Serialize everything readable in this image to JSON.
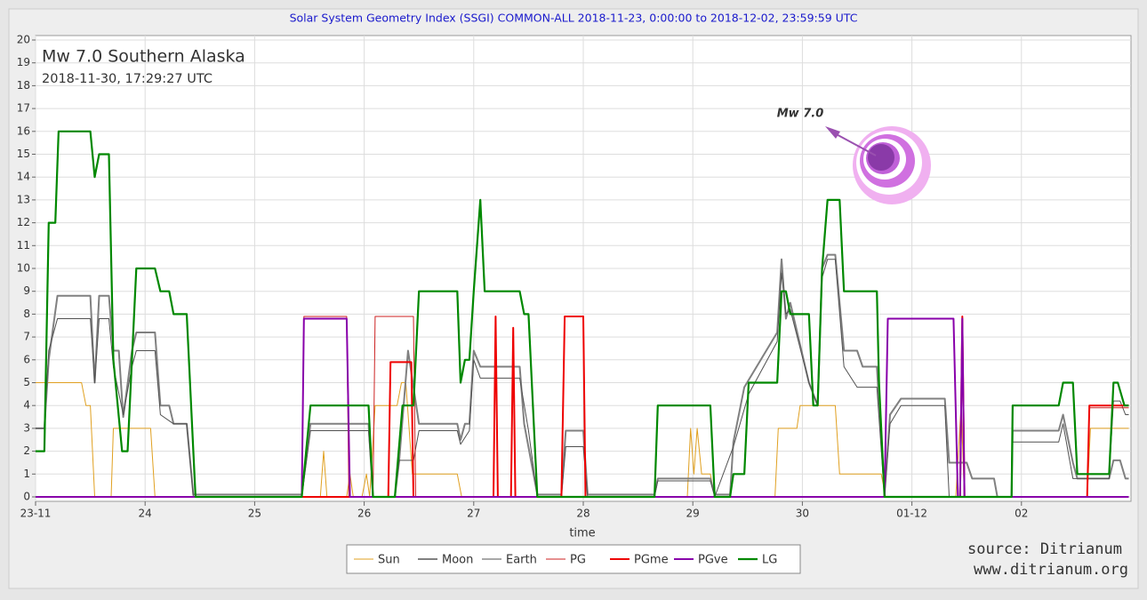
{
  "chart_data": {
    "type": "line",
    "title": "Solar System Geometry Index (SSGI) COMMON-ALL 2018-11-23,  0:00:00 to 2018-12-02, 23:59:59 UTC",
    "event_title": "Mw 7.0 Southern Alaska",
    "event_time": "2018-11-30, 17:29:27 UTC",
    "marker_label": "Mw 7.0",
    "x_label": "time",
    "source": [
      "source: Ditrianum",
      "www.ditrianum.org"
    ],
    "grid": true,
    "xlim": [
      0,
      10
    ],
    "xticks": [
      {
        "value": 0,
        "label": "23-11"
      },
      {
        "value": 1,
        "label": "24"
      },
      {
        "value": 2,
        "label": "25"
      },
      {
        "value": 3,
        "label": "26"
      },
      {
        "value": 4,
        "label": "27"
      },
      {
        "value": 5,
        "label": "28"
      },
      {
        "value": 6,
        "label": "29"
      },
      {
        "value": 7,
        "label": "30"
      },
      {
        "value": 8,
        "label": "01-12"
      },
      {
        "value": 9,
        "label": "02"
      }
    ],
    "ylim": [
      0,
      20
    ],
    "yticks": [
      0,
      1,
      2,
      3,
      4,
      5,
      6,
      7,
      8,
      9,
      10,
      11,
      12,
      13,
      14,
      15,
      16,
      17,
      18,
      19,
      20
    ],
    "series": [
      {
        "name": "Sun",
        "color": "#e0a020",
        "x": [
          0,
          0.42,
          0.46,
          0.5,
          0.54,
          0.69,
          0.71,
          1.05,
          1.09,
          2.6,
          2.63,
          2.66,
          2.84,
          2.87,
          2.9,
          2.98,
          3.02,
          3.05,
          3.1,
          3.3,
          3.34,
          3.38,
          3.44,
          3.85,
          3.89,
          5.95,
          5.98,
          6.01,
          6.04,
          6.08,
          6.16,
          6.2,
          6.75,
          6.78,
          6.95,
          6.98,
          7.3,
          7.34,
          7.72,
          7.76,
          8.4,
          8.45,
          8.48,
          9.6,
          9.63,
          9.98
        ],
        "values": [
          5,
          5,
          4,
          4,
          0,
          0,
          3,
          3,
          0,
          0,
          2,
          0,
          0,
          1,
          0,
          0,
          1,
          0,
          4,
          4,
          5,
          5,
          1,
          1,
          0,
          0,
          3,
          1,
          3,
          1,
          1,
          0,
          0,
          3,
          3,
          4,
          4,
          1,
          1,
          0,
          0,
          4,
          0,
          0,
          3,
          3
        ]
      },
      {
        "name": "Moon",
        "color": "#808080",
        "x": [
          0,
          0.08,
          0.12,
          0.2,
          0.5,
          0.54,
          0.58,
          0.67,
          0.71,
          0.76,
          0.8,
          0.88,
          0.92,
          1.09,
          1.14,
          1.22,
          1.26,
          1.38,
          1.44,
          2.43,
          2.51,
          3.04,
          3.08,
          3.28,
          3.32,
          3.4,
          3.5,
          3.85,
          3.88,
          3.92,
          3.96,
          4.0,
          4.06,
          4.42,
          4.46,
          4.58,
          4.8,
          4.84,
          5.0,
          5.04,
          5.65,
          5.68,
          6.16,
          6.2,
          6.34,
          6.37,
          6.47,
          6.77,
          6.81,
          6.85,
          6.89,
          7.06,
          7.14,
          7.18,
          7.23,
          7.3,
          7.38,
          7.5,
          7.55,
          7.68,
          7.75,
          7.8,
          7.9,
          8.3,
          8.34,
          8.5,
          8.55,
          8.75,
          8.78,
          8.91,
          8.92,
          9.34,
          9.38,
          9.47,
          9.51,
          9.8,
          9.84,
          9.9,
          9.95,
          9.98
        ],
        "values": [
          3,
          3,
          6,
          8.8,
          8.8,
          5,
          8.8,
          8.8,
          6.4,
          6.4,
          3.5,
          6.4,
          7.2,
          7.2,
          4,
          4,
          3.2,
          3.2,
          0.1,
          0.1,
          3.2,
          3.2,
          0,
          0,
          1.6,
          6.4,
          3.2,
          3.2,
          2.5,
          3.2,
          3.2,
          6.4,
          5.7,
          5.7,
          3.2,
          0.1,
          0.1,
          2.9,
          2.9,
          0.1,
          0.1,
          0.8,
          0.8,
          0.1,
          0.1,
          2.4,
          4.8,
          7.2,
          10.4,
          7.8,
          8.5,
          5,
          4,
          10,
          10.6,
          10.6,
          6.4,
          6.4,
          5.7,
          5.7,
          0.1,
          3.6,
          4.3,
          4.3,
          1.5,
          1.5,
          0.8,
          0.8,
          0,
          0,
          2.9,
          2.9,
          3.6,
          1.5,
          0.8,
          0.8,
          1.6,
          1.6,
          0.8,
          0.8
        ]
      },
      {
        "name": "Earth",
        "color": "#505050",
        "x": [
          0,
          0.08,
          0.12,
          0.2,
          0.5,
          0.54,
          0.58,
          0.67,
          0.71,
          0.8,
          0.88,
          0.92,
          1.09,
          1.14,
          1.26,
          1.38,
          1.44,
          2.43,
          2.51,
          3.04,
          3.08,
          3.28,
          3.32,
          3.45,
          3.5,
          3.85,
          3.88,
          3.96,
          4.0,
          4.06,
          4.42,
          4.5,
          4.58,
          4.8,
          4.84,
          5.0,
          5.04,
          5.65,
          5.68,
          6.16,
          6.2,
          6.37,
          6.51,
          6.77,
          6.81,
          6.85,
          6.89,
          7.06,
          7.14,
          7.18,
          7.23,
          7.3,
          7.38,
          7.5,
          7.68,
          7.75,
          7.8,
          7.9,
          8.3,
          8.34,
          8.91,
          8.92,
          9.34,
          9.38,
          9.47,
          9.8,
          9.84,
          9.9,
          9.95,
          9.98
        ],
        "values": [
          3,
          3,
          6.4,
          7.8,
          7.8,
          5,
          7.8,
          7.8,
          5.7,
          3.6,
          5.7,
          6.4,
          6.4,
          3.6,
          3.2,
          3.2,
          0,
          0,
          2.9,
          2.9,
          0,
          0,
          1.6,
          1.6,
          2.9,
          2.9,
          2.3,
          2.9,
          6,
          5.2,
          5.2,
          2.9,
          0,
          0,
          2.2,
          2.2,
          0,
          0,
          0.7,
          0.7,
          0,
          2.2,
          4.5,
          6.8,
          9.8,
          8,
          8.2,
          5,
          4,
          9.6,
          10.4,
          10.4,
          5.7,
          4.8,
          4.8,
          0,
          3.2,
          4,
          4,
          0,
          0,
          2.4,
          2.4,
          3.2,
          0.8,
          0.8,
          4.2,
          4.2,
          3.6,
          3.6
        ]
      },
      {
        "name": "PG",
        "color": "#cc2222",
        "x": [
          0,
          2.43,
          2.45,
          2.84,
          2.86,
          3.08,
          3.1,
          3.45,
          3.47,
          4.18,
          4.2,
          4.22,
          9.6,
          9.62,
          9.98
        ],
        "values": [
          0,
          0,
          7.9,
          7.9,
          0,
          0,
          7.9,
          7.9,
          0,
          0,
          7.9,
          0,
          0,
          3.9,
          3.9
        ]
      },
      {
        "name": "PGme",
        "color": "#ee0000",
        "x": [
          0,
          3.22,
          3.24,
          3.43,
          3.45,
          4.18,
          4.2,
          4.22,
          4.34,
          4.36,
          4.38,
          4.8,
          4.83,
          5.0,
          5.02,
          8.44,
          8.46,
          8.48,
          9.6,
          9.62,
          9.98
        ],
        "values": [
          0,
          0,
          5.9,
          5.9,
          0,
          0,
          7.9,
          0,
          0,
          7.4,
          0,
          0,
          7.9,
          7.9,
          0,
          0,
          7.9,
          0,
          0,
          4,
          4
        ]
      },
      {
        "name": "PGve",
        "color": "#8800aa",
        "x": [
          0,
          2.43,
          2.45,
          2.84,
          2.87,
          7.75,
          7.78,
          8.38,
          8.42,
          8.44,
          8.46,
          8.48,
          9.98
        ],
        "values": [
          0,
          0,
          7.8,
          7.8,
          0,
          0,
          7.8,
          7.8,
          0,
          0,
          7.8,
          0,
          0
        ]
      },
      {
        "name": "LG",
        "color": "#008800",
        "x": [
          0,
          0.08,
          0.12,
          0.18,
          0.21,
          0.5,
          0.54,
          0.58,
          0.67,
          0.71,
          0.79,
          0.84,
          0.88,
          0.92,
          1.09,
          1.14,
          1.22,
          1.26,
          1.38,
          1.46,
          2.43,
          2.51,
          3.04,
          3.08,
          3.28,
          3.35,
          3.45,
          3.5,
          3.85,
          3.88,
          3.92,
          3.96,
          4.0,
          4.06,
          4.1,
          4.42,
          4.46,
          4.5,
          4.58,
          5.65,
          5.68,
          6.16,
          6.2,
          6.34,
          6.37,
          6.47,
          6.51,
          6.77,
          6.81,
          6.85,
          6.89,
          7.06,
          7.1,
          7.14,
          7.18,
          7.23,
          7.34,
          7.38,
          7.68,
          7.7,
          7.75,
          8.91,
          8.92,
          9.34,
          9.38,
          9.47,
          9.51,
          9.8,
          9.84,
          9.88,
          9.94,
          9.98
        ],
        "values": [
          2,
          2,
          12,
          12,
          16,
          16,
          14,
          15,
          15,
          6,
          2,
          2,
          6,
          10,
          10,
          9,
          9,
          8,
          8,
          0,
          0,
          4,
          4,
          0,
          0,
          4,
          4,
          9,
          9,
          5,
          6,
          6,
          9,
          13,
          9,
          9,
          8,
          8,
          0,
          0,
          4,
          4,
          0,
          0,
          1,
          1,
          5,
          5,
          9,
          9,
          8,
          8,
          4,
          4,
          10,
          13,
          13,
          9,
          9,
          5,
          0,
          0,
          4,
          4,
          5,
          5,
          1,
          1,
          5,
          5,
          4,
          4
        ]
      }
    ]
  }
}
